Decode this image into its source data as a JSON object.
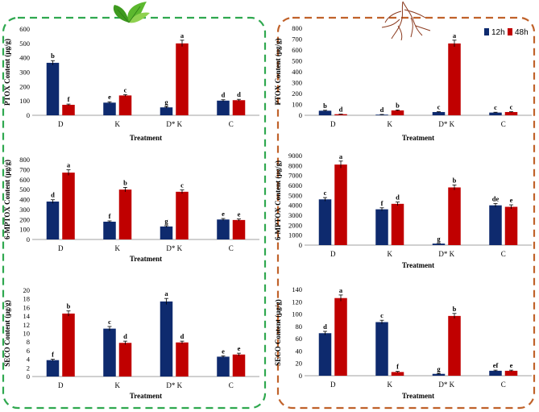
{
  "legend": {
    "series_12h": "12h",
    "series_48h": "48h"
  },
  "colors": {
    "s12h": "#0e2a6e",
    "s48h": "#c00000",
    "leaf_frame": "#2fa84f",
    "root_frame": "#c0622a"
  },
  "icons": {
    "leaf": "leaf-icon",
    "root": "root-icon"
  },
  "chart_data": [
    {
      "type": "bar",
      "panel": "leaf",
      "categories": [
        "D",
        "K",
        "D* K",
        "C"
      ],
      "ylabel": "PTOX Content  (μg/g)",
      "xlabel": "Treatment",
      "ylim": [
        0,
        600
      ],
      "yticks": [
        0,
        100,
        200,
        300,
        400,
        500,
        600
      ],
      "series": [
        {
          "name": "12h",
          "values": [
            365,
            88,
            55,
            102
          ],
          "errors": [
            15,
            6,
            5,
            6
          ],
          "labels": [
            "b",
            "e",
            "g",
            "d"
          ]
        },
        {
          "name": "48h",
          "values": [
            73,
            138,
            500,
            105
          ],
          "errors": [
            5,
            6,
            22,
            6
          ],
          "labels": [
            "f",
            "c",
            "a",
            "d"
          ]
        }
      ]
    },
    {
      "type": "bar",
      "panel": "leaf",
      "categories": [
        "D",
        "K",
        "D* K",
        "C"
      ],
      "ylabel": "6-MPTOX Content  (μg/g)",
      "xlabel": "Treatment",
      "ylim": [
        0,
        800
      ],
      "yticks": [
        0,
        100,
        200,
        300,
        400,
        500,
        600,
        700,
        800
      ],
      "series": [
        {
          "name": "12h",
          "values": [
            380,
            178,
            130,
            200
          ],
          "errors": [
            18,
            8,
            8,
            10
          ],
          "labels": [
            "d",
            "f",
            "g",
            "e"
          ]
        },
        {
          "name": "48h",
          "values": [
            670,
            500,
            478,
            195
          ],
          "errors": [
            28,
            22,
            18,
            10
          ],
          "labels": [
            "a",
            "b",
            "c",
            "e"
          ]
        }
      ]
    },
    {
      "type": "bar",
      "panel": "leaf",
      "categories": [
        "D",
        "K",
        "D* K",
        "C"
      ],
      "ylabel": "SECO Content  (μg/g)",
      "xlabel": "Treatment",
      "ylim": [
        0,
        20
      ],
      "yticks": [
        0,
        2,
        4,
        6,
        8,
        10,
        12,
        14,
        16,
        18,
        20
      ],
      "series": [
        {
          "name": "12h",
          "values": [
            3.8,
            11.1,
            17.4,
            4.6
          ],
          "errors": [
            0.2,
            0.5,
            0.7,
            0.2
          ],
          "labels": [
            "f",
            "c",
            "a",
            "e"
          ]
        },
        {
          "name": "48h",
          "values": [
            14.6,
            7.8,
            7.9,
            5.1
          ],
          "errors": [
            0.6,
            0.4,
            0.3,
            0.3
          ],
          "labels": [
            "b",
            "d",
            "d",
            "e"
          ]
        }
      ]
    },
    {
      "type": "bar",
      "panel": "root",
      "categories": [
        "D",
        "K",
        "D* K",
        "C"
      ],
      "ylabel": "PTOX Content  (μg/g)",
      "xlabel": "Treatment",
      "ylim": [
        0,
        800
      ],
      "yticks": [
        0,
        100,
        200,
        300,
        400,
        500,
        600,
        700,
        800
      ],
      "series": [
        {
          "name": "12h",
          "values": [
            42,
            6,
            30,
            25
          ],
          "errors": [
            4,
            2,
            3,
            3
          ],
          "labels": [
            "b",
            "d",
            "c",
            "c"
          ]
        },
        {
          "name": "48h",
          "values": [
            10,
            45,
            660,
            30
          ],
          "errors": [
            2,
            4,
            30,
            3
          ],
          "labels": [
            "d",
            "b",
            "a",
            "c"
          ]
        }
      ]
    },
    {
      "type": "bar",
      "panel": "root",
      "categories": [
        "D",
        "K",
        "D* K",
        "C"
      ],
      "ylabel": "6-MPTOX Content  (μg/g)",
      "xlabel": "Treatment",
      "ylim": [
        0,
        9000
      ],
      "yticks": [
        0,
        1000,
        2000,
        3000,
        4000,
        5000,
        6000,
        7000,
        8000,
        9000
      ],
      "series": [
        {
          "name": "12h",
          "values": [
            4600,
            3600,
            150,
            4000
          ],
          "errors": [
            180,
            150,
            20,
            180
          ],
          "labels": [
            "c",
            "f",
            "g",
            "de"
          ]
        },
        {
          "name": "48h",
          "values": [
            8100,
            4150,
            5800,
            3850
          ],
          "errors": [
            350,
            180,
            250,
            200
          ],
          "labels": [
            "a",
            "d",
            "b",
            "e"
          ]
        }
      ]
    },
    {
      "type": "bar",
      "panel": "root",
      "categories": [
        "D",
        "K",
        "D* K",
        "C"
      ],
      "ylabel": "SECO Content  (μg/g)",
      "xlabel": "Treatment",
      "ylim": [
        0,
        140
      ],
      "yticks": [
        0,
        20,
        40,
        60,
        80,
        100,
        120,
        140
      ],
      "series": [
        {
          "name": "12h",
          "values": [
            69,
            87,
            3,
            8
          ],
          "errors": [
            3,
            3,
            0.5,
            1
          ],
          "labels": [
            "d",
            "c",
            "g",
            "ef"
          ]
        },
        {
          "name": "48h",
          "values": [
            126,
            6,
            97,
            8
          ],
          "errors": [
            5,
            1,
            4,
            1
          ],
          "labels": [
            "a",
            "f",
            "b",
            "e"
          ]
        }
      ]
    }
  ]
}
